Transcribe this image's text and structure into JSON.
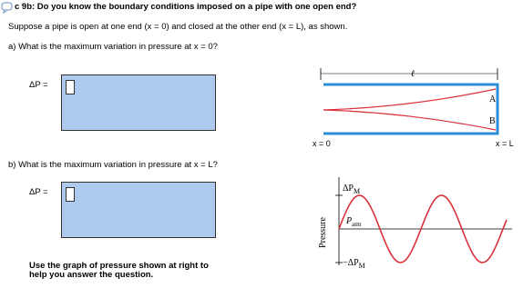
{
  "header": {
    "title": "c 9b: Do you know the boundary conditions imposed on a pipe with one open end?"
  },
  "intro": "Suppose a pipe is open at one end (x = 0) and closed at the other end (x = L), as shown.",
  "questions": [
    {
      "prompt": "a) What is the maximum variation in pressure at x = 0?",
      "answer_label": "ΔP ="
    },
    {
      "prompt": "b) What is the maximum variation in pressure at x = L?",
      "answer_label": "ΔP ="
    }
  ],
  "hint": [
    "Use the graph of pressure shown at right to",
    "help you answer the question."
  ],
  "pipe_diagram": {
    "length_label": "ℓ",
    "point_a": "A",
    "point_b": "B",
    "left_label": "x = 0",
    "right_label": "x = L"
  },
  "pressure_graph": {
    "axis_label": "Pressure",
    "max_label": {
      "main": "ΔP",
      "sub": "M"
    },
    "mid_label": {
      "main": "P",
      "sub": "atm"
    },
    "min_label": {
      "main": "−ΔP",
      "sub": "M"
    }
  }
}
